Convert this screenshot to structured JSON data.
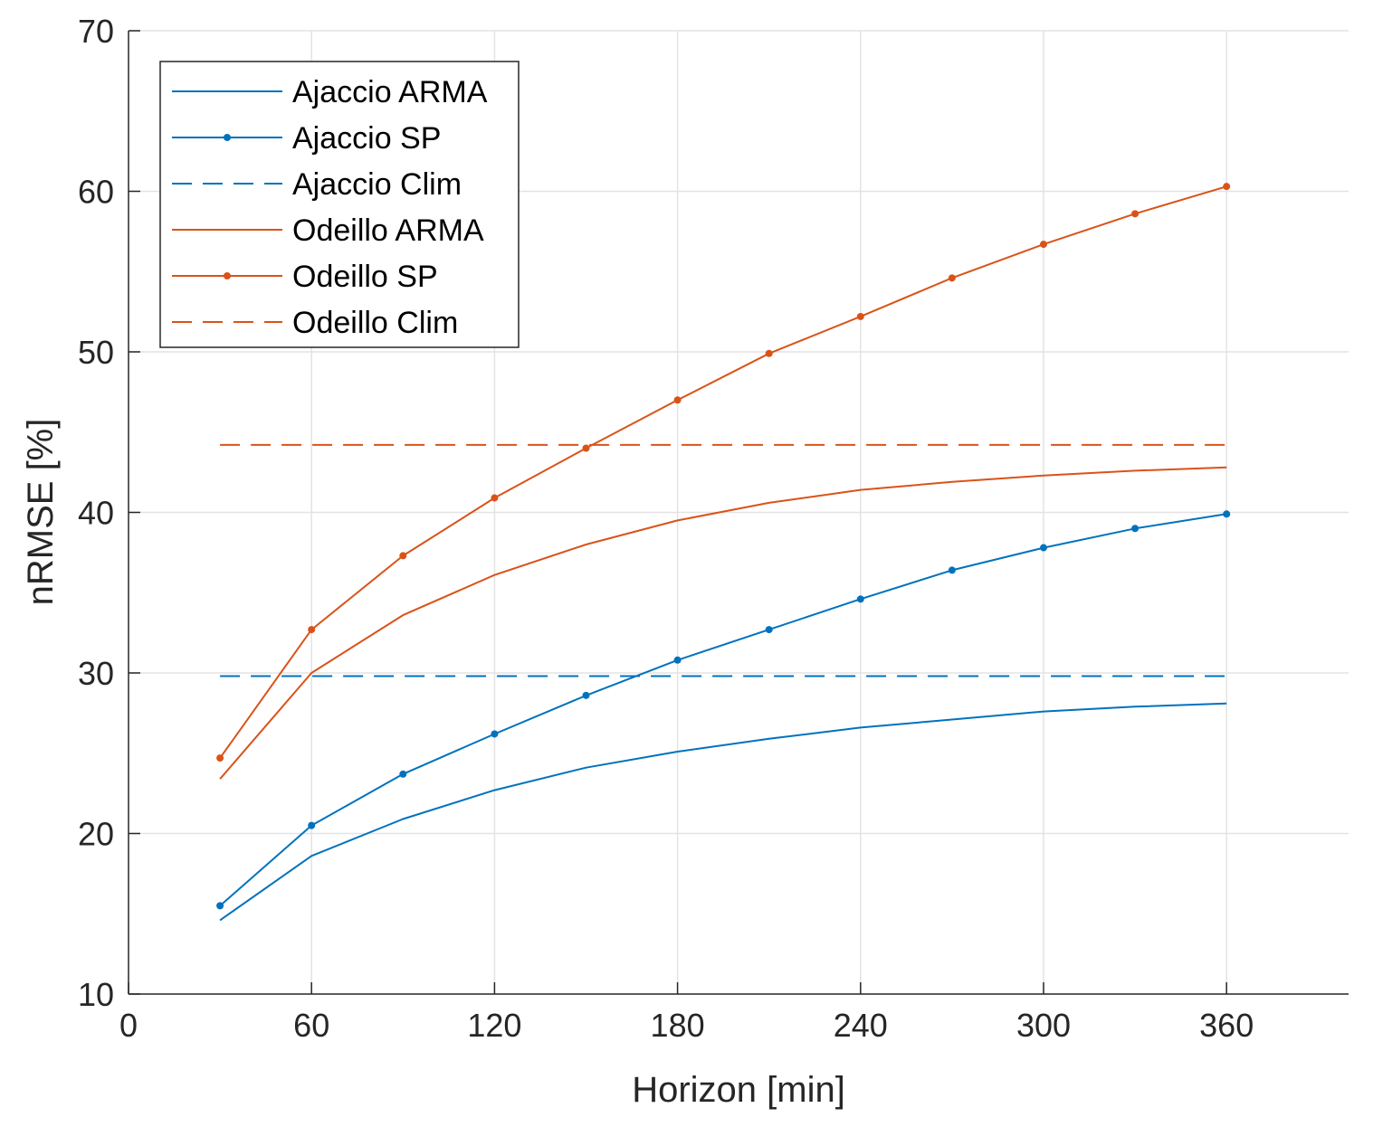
{
  "chart_data": {
    "type": "line",
    "title": "",
    "xlabel": "Horizon [min]",
    "ylabel": "nRMSE [%]",
    "xlim": [
      0,
      400
    ],
    "ylim": [
      10,
      70
    ],
    "xticks": [
      0,
      60,
      120,
      180,
      240,
      300,
      360
    ],
    "yticks": [
      10,
      20,
      30,
      40,
      50,
      60,
      70
    ],
    "grid": true,
    "legend_position": "top-left",
    "x": [
      30,
      60,
      90,
      120,
      150,
      180,
      210,
      240,
      270,
      300,
      330,
      360
    ],
    "series": [
      {
        "name": "Ajaccio ARMA",
        "color": "#0072BD",
        "style": "solid",
        "marker": false,
        "values": [
          14.6,
          18.6,
          20.9,
          22.7,
          24.1,
          25.1,
          25.9,
          26.6,
          27.1,
          27.6,
          27.9,
          28.1
        ]
      },
      {
        "name": "Ajaccio SP",
        "color": "#0072BD",
        "style": "solid",
        "marker": true,
        "values": [
          15.5,
          20.5,
          23.7,
          26.2,
          28.6,
          30.8,
          32.7,
          34.6,
          36.4,
          37.8,
          39.0,
          39.9
        ]
      },
      {
        "name": "Ajaccio Clim",
        "color": "#0072BD",
        "style": "dashed",
        "marker": false,
        "values": [
          29.8,
          29.8,
          29.8,
          29.8,
          29.8,
          29.8,
          29.8,
          29.8,
          29.8,
          29.8,
          29.8,
          29.8
        ]
      },
      {
        "name": "Odeillo ARMA",
        "color": "#D95319",
        "style": "solid",
        "marker": false,
        "values": [
          23.4,
          30.0,
          33.6,
          36.1,
          38.0,
          39.5,
          40.6,
          41.4,
          41.9,
          42.3,
          42.6,
          42.8
        ]
      },
      {
        "name": "Odeillo SP",
        "color": "#D95319",
        "style": "solid",
        "marker": true,
        "values": [
          24.7,
          32.7,
          37.3,
          40.9,
          44.0,
          47.0,
          49.9,
          52.2,
          54.6,
          56.7,
          58.6,
          60.3
        ]
      },
      {
        "name": "Odeillo Clim",
        "color": "#D95319",
        "style": "dashed",
        "marker": false,
        "values": [
          44.2,
          44.2,
          44.2,
          44.2,
          44.2,
          44.2,
          44.2,
          44.2,
          44.2,
          44.2,
          44.2,
          44.2
        ]
      }
    ]
  }
}
